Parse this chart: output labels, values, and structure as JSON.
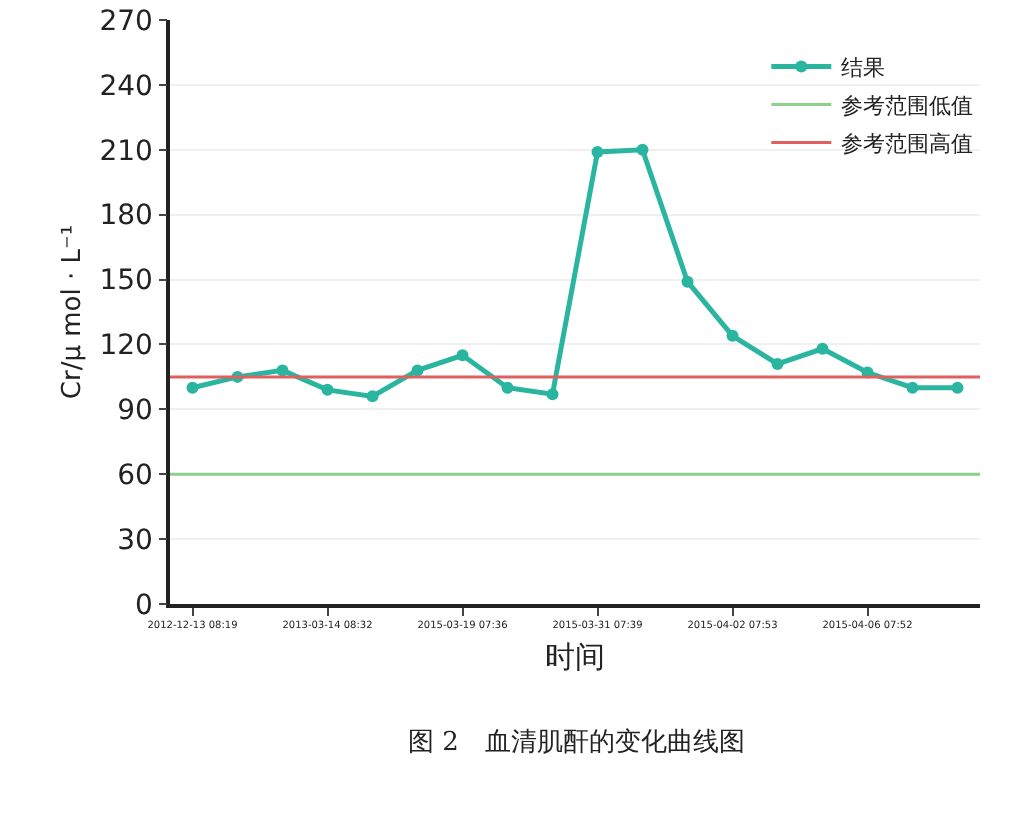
{
  "chart_data": {
    "type": "line",
    "xlabel": "时间",
    "ylabel": "Cr/μ mol · L⁻¹",
    "categories": [
      "2012-12-13 08:19",
      null,
      null,
      "2013-03-14 08:32",
      null,
      null,
      "2015-03-19 07:36",
      null,
      null,
      "2015-03-31 07:39",
      null,
      null,
      "2015-04-02 07:53",
      null,
      null,
      "2015-04-06 07:52",
      null,
      null
    ],
    "series": [
      {
        "name": "结果",
        "color": "#2ab5a0",
        "values": [
          100,
          105,
          108,
          99,
          96,
          108,
          115,
          100,
          97,
          209,
          210,
          149,
          124,
          111,
          118,
          107,
          100,
          100
        ]
      }
    ],
    "ref_lines": [
      {
        "axis": "y",
        "value": 60,
        "label": "参考范围低值",
        "color": "#8fd18a"
      },
      {
        "axis": "y",
        "value": 105,
        "label": "参考范围高值",
        "color": "#e06060"
      }
    ],
    "ylim": [
      0,
      270
    ],
    "yticks": [
      0,
      30,
      60,
      90,
      120,
      150,
      180,
      210,
      240,
      270
    ],
    "grid": "y",
    "legend": "top right",
    "marker": "circle",
    "line_style": "solid",
    "annotations": [
      "图 2　血清肌酐的变化曲线图"
    ]
  }
}
